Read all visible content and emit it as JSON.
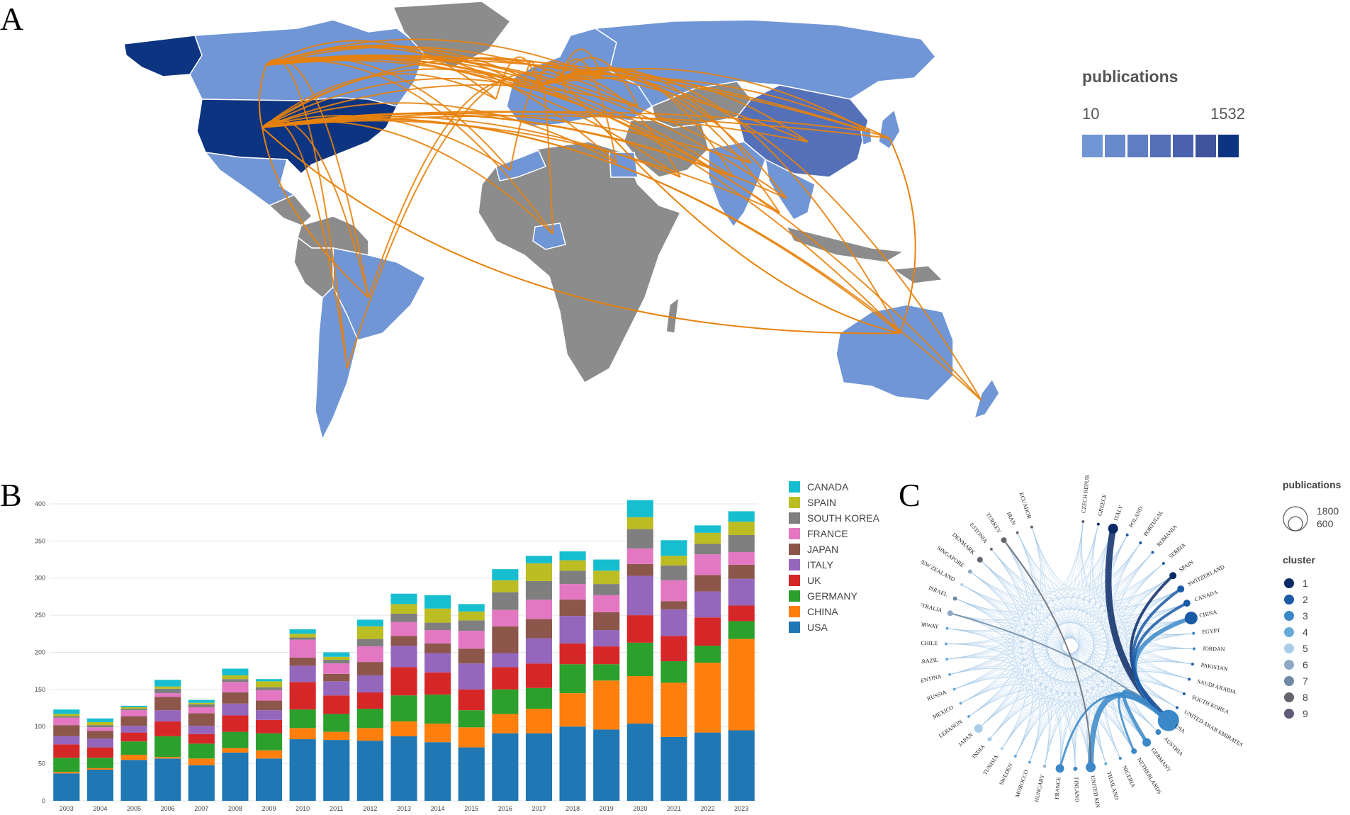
{
  "panels": {
    "a": "A",
    "b": "B",
    "c": "C"
  },
  "map": {
    "legend_title": "publications",
    "legend_min": "10",
    "legend_max": "1532",
    "scale_colors": [
      "#7096d6",
      "#6889cc",
      "#5f7dc2",
      "#5470b8",
      "#4a62ad",
      "#3f539c",
      "#0d3480"
    ],
    "link_color": "#e8820c",
    "land_gray": "#8c8c8c"
  },
  "chart_data": {
    "type": "bar",
    "stacked": true,
    "categories": [
      "2003",
      "2004",
      "2005",
      "2006",
      "2007",
      "2008",
      "2009",
      "2010",
      "2011",
      "2012",
      "2013",
      "2014",
      "2015",
      "2016",
      "2017",
      "2018",
      "2019",
      "2020",
      "2021",
      "2022",
      "2023"
    ],
    "ylim": [
      0,
      420
    ],
    "yticks": [
      0,
      50,
      100,
      150,
      200,
      250,
      300,
      350,
      400
    ],
    "series": [
      {
        "name": "USA",
        "color": "#1f77b4",
        "values": [
          37,
          42,
          55,
          57,
          48,
          65,
          57,
          83,
          82,
          81,
          87,
          79,
          72,
          91,
          91,
          100,
          96,
          104,
          86,
          92,
          95
        ]
      },
      {
        "name": "CHINA",
        "color": "#ff7f0e",
        "values": [
          2,
          2,
          7,
          2,
          9,
          6,
          11,
          15,
          11,
          17,
          20,
          25,
          27,
          26,
          33,
          45,
          66,
          64,
          73,
          94,
          123
        ]
      },
      {
        "name": "GERMANY",
        "color": "#2ca02c",
        "values": [
          19,
          14,
          18,
          28,
          20,
          22,
          23,
          25,
          24,
          26,
          35,
          39,
          23,
          33,
          28,
          39,
          22,
          45,
          29,
          23,
          24
        ]
      },
      {
        "name": "UK",
        "color": "#d62728",
        "values": [
          18,
          14,
          12,
          20,
          13,
          22,
          18,
          37,
          25,
          22,
          38,
          30,
          28,
          30,
          33,
          28,
          24,
          37,
          34,
          38,
          21
        ]
      },
      {
        "name": "ITALY",
        "color": "#9467bd",
        "values": [
          11,
          12,
          9,
          15,
          11,
          16,
          13,
          22,
          19,
          23,
          29,
          26,
          35,
          19,
          34,
          37,
          22,
          53,
          36,
          35,
          36
        ]
      },
      {
        "name": "JAPAN",
        "color": "#8c564b",
        "values": [
          15,
          10,
          13,
          18,
          17,
          15,
          13,
          11,
          10,
          18,
          13,
          13,
          20,
          36,
          26,
          22,
          24,
          16,
          11,
          22,
          19
        ]
      },
      {
        "name": "FRANCE",
        "color": "#e377c2",
        "values": [
          10,
          5,
          8,
          5,
          8,
          14,
          14,
          24,
          14,
          21,
          19,
          18,
          24,
          22,
          26,
          21,
          23,
          21,
          28,
          28,
          17
        ]
      },
      {
        "name": "SOUTH KOREA",
        "color": "#7f7f7f",
        "values": [
          2,
          3,
          2,
          6,
          4,
          4,
          4,
          3,
          5,
          10,
          11,
          10,
          14,
          24,
          25,
          18,
          15,
          26,
          20,
          14,
          23
        ]
      },
      {
        "name": "SPAIN",
        "color": "#bcbd22",
        "values": [
          3,
          4,
          2,
          3,
          2,
          5,
          8,
          5,
          4,
          17,
          13,
          19,
          12,
          16,
          24,
          14,
          18,
          16,
          13,
          15,
          18
        ]
      },
      {
        "name": "CANADA",
        "color": "#17becf",
        "values": [
          6,
          5,
          2,
          9,
          4,
          9,
          3,
          6,
          6,
          9,
          14,
          18,
          10,
          15,
          10,
          12,
          15,
          23,
          21,
          10,
          14
        ]
      }
    ]
  },
  "chord": {
    "countries": [
      "CZECH REPUBLIC",
      "GREECE",
      "ITALY",
      "POLAND",
      "PORTUGAL",
      "ROMANIA",
      "SERBIA",
      "SPAIN",
      "SWITZERLAND",
      "CANADA",
      "CHINA",
      "EGYPT",
      "JORDAN",
      "PAKISTAN",
      "SAUDI ARABIA",
      "SOUTH KOREA",
      "UNITED ARAB EMIRATES",
      "USA",
      "AUSTRIA",
      "GERMANY",
      "NETHERLANDS",
      "NIGERIA",
      "THAILAND",
      "UNITED KINGDOM",
      "FINLAND",
      "FRANCE",
      "HUNGARY",
      "MOROCCO",
      "SWEDEN",
      "TUNISIA",
      "INDIA",
      "JAPAN",
      "LEBANON",
      "MEXICO",
      "RUSSIA",
      "ARGENTINA",
      "BRAZIL",
      "CHILE",
      "NORWAY",
      "AUSTRALIA",
      "ISRAEL",
      "NEW ZEALAND",
      "SINGAPORE",
      "DENMARK",
      "ESTONIA",
      "TURKEY",
      "IRAN",
      "ECUADOR"
    ],
    "legend_title": "publications",
    "size_labels": [
      "1800",
      "600"
    ],
    "cluster_title": "cluster",
    "clusters": [
      {
        "label": "1",
        "color": "#0a2a66"
      },
      {
        "label": "2",
        "color": "#1a5aa6"
      },
      {
        "label": "3",
        "color": "#3a88c8"
      },
      {
        "label": "4",
        "color": "#66aad8"
      },
      {
        "label": "5",
        "color": "#a9cfe8"
      },
      {
        "label": "6",
        "color": "#8fa9c4"
      },
      {
        "label": "7",
        "color": "#6e8aa3"
      },
      {
        "label": "8",
        "color": "#64656f"
      },
      {
        "label": "9",
        "color": "#5e5a7a"
      }
    ]
  }
}
